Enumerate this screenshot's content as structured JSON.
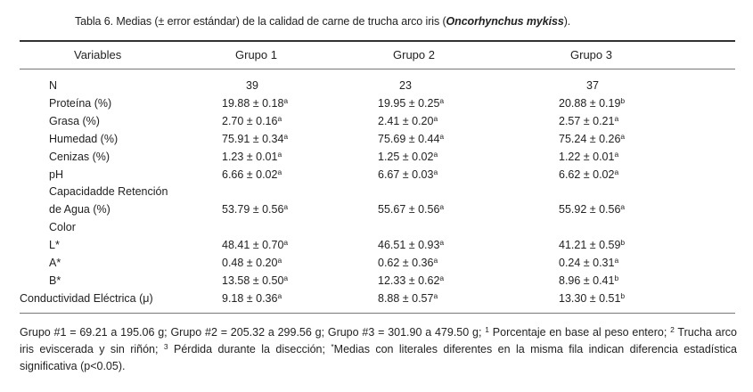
{
  "caption": {
    "prefix": "Tabla 6. Medias (± error estándar) de la calidad de carne de trucha arco iris (",
    "species": "Oncorhynchus mykiss",
    "suffix": ")."
  },
  "headers": [
    "Variables",
    "Grupo 1",
    "Grupo 2",
    "Grupo 3"
  ],
  "rows": [
    {
      "label": "N",
      "g1": "39",
      "g1s": "",
      "g2": "23",
      "g2s": "",
      "g3": "37",
      "g3s": ""
    },
    {
      "label": "Proteína (%)",
      "g1": "19.88 ± 0.18",
      "g1s": "a",
      "g2": "19.95 ± 0.25",
      "g2s": "a",
      "g3": "20.88 ± 0.19",
      "g3s": "b"
    },
    {
      "label": "Grasa (%)",
      "g1": "2.70 ± 0.16",
      "g1s": "a",
      "g2": "2.41 ± 0.20",
      "g2s": "a",
      "g3": "2.57 ± 0.21",
      "g3s": "a"
    },
    {
      "label": "Humedad (%)",
      "g1": "75.91 ± 0.34",
      "g1s": "a",
      "g2": "75.69 ± 0.44",
      "g2s": "a",
      "g3": "75.24 ± 0.26",
      "g3s": "a"
    },
    {
      "label": "Cenizas (%)",
      "g1": "1.23 ± 0.01",
      "g1s": "a",
      "g2": "1.25 ± 0.02",
      "g2s": "a",
      "g3": "1.22 ± 0.01",
      "g3s": "a"
    },
    {
      "label": "pH",
      "g1": "6.66 ± 0.02",
      "g1s": "a",
      "g2": "6.67 ± 0.03",
      "g2s": "a",
      "g3": "6.62 ± 0.02",
      "g3s": "a"
    },
    {
      "label": "Capacidadde Retención",
      "g1": "",
      "g1s": "",
      "g2": "",
      "g2s": "",
      "g3": "",
      "g3s": ""
    },
    {
      "label": "de Agua (%)",
      "g1": "53.79 ± 0.56",
      "g1s": "a",
      "g2": "55.67 ± 0.56",
      "g2s": "a",
      "g3": "55.92 ± 0.56",
      "g3s": "a"
    },
    {
      "label": "Color",
      "g1": "",
      "g1s": "",
      "g2": "",
      "g2s": "",
      "g3": "",
      "g3s": ""
    },
    {
      "label": "L*",
      "g1": "48.41 ± 0.70",
      "g1s": "a",
      "g2": "46.51 ± 0.93",
      "g2s": "a",
      "g3": "41.21 ± 0.59",
      "g3s": "b"
    },
    {
      "label": "A*",
      "g1": "0.48 ± 0.20",
      "g1s": "a",
      "g2": "0.62 ± 0.36",
      "g2s": "a",
      "g3": "0.24 ± 0.31",
      "g3s": "a"
    },
    {
      "label": "B*",
      "g1": "13.58 ± 0.50",
      "g1s": "a",
      "g2": "12.33 ± 0.62",
      "g2s": "a",
      "g3": "8.96 ± 0.41",
      "g3s": "b"
    },
    {
      "label": "Conductividad Eléctrica (μ)",
      "g1": "9.18 ± 0.36",
      "g1s": "a",
      "g2": "8.88 ± 0.57",
      "g2s": "a",
      "g3": "13.30 ± 0.51",
      "g3s": "b"
    }
  ],
  "footnote": {
    "p1": "Grupo #1 = 69.21 a 195.06 g; Grupo #2 = 205.32 a 299.56 g; Grupo #3 = 301.90 a 479.50 g; ",
    "s1": "1",
    "p2": " Porcentaje en base al peso entero; ",
    "s2": "2",
    "p3": " Trucha arco iris eviscerada y sin riñón; ",
    "s3": "3",
    "p4": " Pérdida durante la disección; ",
    "s4": "*",
    "p5": "Medias con literales diferentes en la misma fila indican diferencia estadística significativa (p<0.05)."
  }
}
